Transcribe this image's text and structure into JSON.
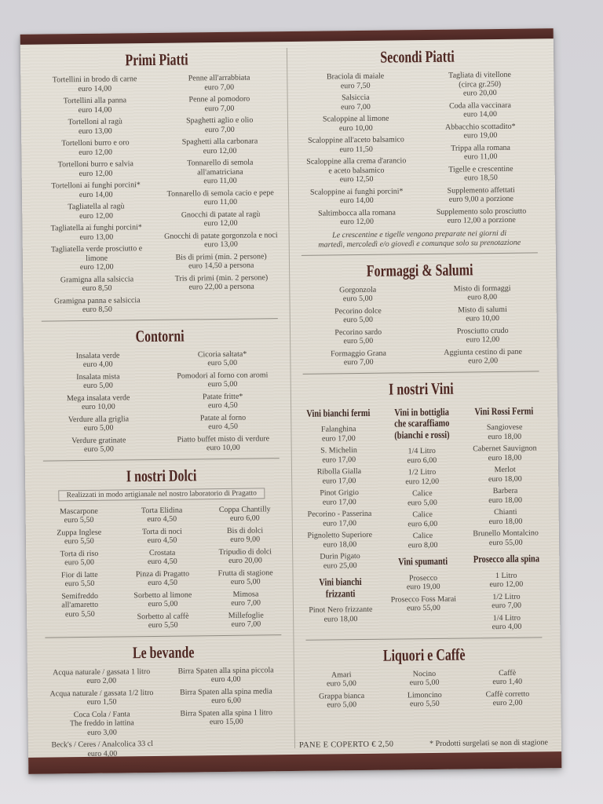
{
  "colors": {
    "bar_maroon": "#532b27",
    "title_maroon": "#4d2621",
    "paper_cream": "#ded9cf"
  },
  "footer": {
    "left": "PANE E COPERTO € 2,50",
    "right": "* Prodotti surgelati se non di stagione"
  },
  "board": {
    "halves": [
      {
        "name": "left",
        "sections": [
          {
            "id": "primi-piatti",
            "title": "Primi Piatti",
            "rule": true,
            "columns": [
              [
                {
                  "name": "Tortellini in brodo di carne",
                  "price": "euro 14,00"
                },
                {
                  "name": "Tortellini alla panna",
                  "price": "euro 14,00"
                },
                {
                  "name": "Tortelloni al ragù",
                  "price": "euro 13,00"
                },
                {
                  "name": "Tortelloni burro e oro",
                  "price": "euro 12,00"
                },
                {
                  "name": "Tortelloni burro e salvia",
                  "price": "euro 12,00"
                },
                {
                  "name": "Tortelloni ai funghi porcini*",
                  "price": "euro 14,00"
                },
                {
                  "name": "Tagliatella al ragù",
                  "price": "euro 12,00"
                },
                {
                  "name": "Tagliatella ai funghi porcini*",
                  "price": "euro 13,00"
                },
                {
                  "name": "Tagliatella verde prosciutto e\nlimone",
                  "price": "euro 12,00"
                },
                {
                  "name": "Gramigna alla salsiccia",
                  "price": "euro 8,50"
                },
                {
                  "name": "Gramigna panna e salsiccia",
                  "price": "euro 8,50"
                }
              ],
              [
                {
                  "name": "Penne all'arrabbiata",
                  "price": "euro 7,00"
                },
                {
                  "name": "Penne al pomodoro",
                  "price": "euro 7,00"
                },
                {
                  "name": "Spaghetti aglio e olio",
                  "price": "euro 7,00"
                },
                {
                  "name": "Spaghetti alla carbonara",
                  "price": "euro 12,00"
                },
                {
                  "name": "Tonnarello di semola\nall'amatriciana",
                  "price": "euro 11,00"
                },
                {
                  "name": "Tonnarello di semola cacio e pepe",
                  "price": "euro 11,00"
                },
                {
                  "name": "Gnocchi di patate al ragù",
                  "price": "euro 12,00"
                },
                {
                  "name": "Gnocchi di patate gorgonzola e noci",
                  "price": "euro 13,00"
                },
                {
                  "name": "Bis di primi (min. 2 persone)",
                  "price": "euro 14,50 a persona"
                },
                {
                  "name": "Tris di primi (min. 2 persone)",
                  "price": "euro 22,00 a persona"
                }
              ]
            ]
          },
          {
            "id": "contorni",
            "title": "Contorni",
            "rule": true,
            "columns": [
              [
                {
                  "name": "Insalata verde",
                  "price": "euro 4,00"
                },
                {
                  "name": "Insalata mista",
                  "price": "euro 5,00"
                },
                {
                  "name": "Mega insalata verde",
                  "price": "euro 10,00"
                },
                {
                  "name": "Verdure alla griglia",
                  "price": "euro 5,00"
                },
                {
                  "name": "Verdure gratinate",
                  "price": "euro 5,00"
                }
              ],
              [
                {
                  "name": "Cicoria saltata*",
                  "price": "euro 5,00"
                },
                {
                  "name": "Pomodori al forno con aromi",
                  "price": "euro 5,00"
                },
                {
                  "name": "Patate fritte*",
                  "price": "euro 4,50"
                },
                {
                  "name": "Patate al forno",
                  "price": "euro 4,50"
                },
                {
                  "name": "Piatto buffet misto di verdure",
                  "price": "euro 10,00"
                }
              ]
            ]
          },
          {
            "id": "dolci",
            "title": "I nostri Dolci",
            "boxed_note": "Realizzati in modo artigianale nel nostro laboratorio di Pragatto",
            "rule": true,
            "columns": [
              [
                {
                  "name": "Mascarpone",
                  "price": "euro 5,50"
                },
                {
                  "name": "Zuppa Inglese",
                  "price": "euro 5,50"
                },
                {
                  "name": "Torta di riso",
                  "price": "euro 5,00"
                },
                {
                  "name": "Fior di latte",
                  "price": "euro 5,50"
                },
                {
                  "name": "Semifreddo\nall'amaretto",
                  "price": "euro 5,50"
                }
              ],
              [
                {
                  "name": "Torta Elidina",
                  "price": "euro 4,50"
                },
                {
                  "name": "Torta di noci",
                  "price": "euro 4,50"
                },
                {
                  "name": "Crostata",
                  "price": "euro 4,50"
                },
                {
                  "name": "Pinza di Pragatto",
                  "price": "euro 4,50"
                },
                {
                  "name": "Sorbetto al limone",
                  "price": "euro 5,00"
                },
                {
                  "name": "Sorbetto al caffè",
                  "price": "euro 5,50"
                }
              ],
              [
                {
                  "name": "Coppa Chantilly",
                  "price": "euro 6,00"
                },
                {
                  "name": "Bis di dolci",
                  "price": "euro 9,00"
                },
                {
                  "name": "Tripudio di dolci",
                  "price": "euro 20,00"
                },
                {
                  "name": "Frutta di stagione",
                  "price": "euro 5,00"
                },
                {
                  "name": "Mimosa",
                  "price": "euro 7,00"
                },
                {
                  "name": "Millefoglie",
                  "price": "euro 7,00"
                }
              ]
            ]
          },
          {
            "id": "bevande",
            "title": "Le bevande",
            "rule": false,
            "columns": [
              [
                {
                  "name": "Acqua naturale / gassata 1 litro",
                  "price": "euro 2,00"
                },
                {
                  "name": "Acqua naturale / gassata 1/2 litro",
                  "price": "euro 1,50"
                },
                {
                  "name": "Coca Cola / Fanta\nThe freddo in lattina",
                  "price": "euro 3,00"
                },
                {
                  "name": "Beck's / Ceres / Analcolica 33 cl",
                  "price": "euro 4,00"
                }
              ],
              [
                {
                  "name": "Birra Spaten alla spina piccola",
                  "price": "euro 4,00"
                },
                {
                  "name": "Birra Spaten alla spina media",
                  "price": "euro 6,00"
                },
                {
                  "name": "Birra Spaten alla spina 1 litro",
                  "price": "euro 15,00"
                }
              ]
            ]
          }
        ]
      },
      {
        "name": "right",
        "sections": [
          {
            "id": "secondi-piatti",
            "title": "Secondi Piatti",
            "rule": true,
            "italic_note": "Le crescentine e tigelle vengono preparate nei giorni di\nmartedì, mercoledì e/o giovedì e comunque solo su prenotazione",
            "columns": [
              [
                {
                  "name": "Braciola di maiale",
                  "price": "euro 7,50"
                },
                {
                  "name": "Salsiccia",
                  "price": "euro 7,00"
                },
                {
                  "name": "Scaloppine al limone",
                  "price": "euro 10,00"
                },
                {
                  "name": "Scaloppine all'aceto balsamico",
                  "price": "euro 11,50"
                },
                {
                  "name": "Scaloppine alla crema d'arancio\ne aceto balsamico",
                  "price": "euro 12,50"
                },
                {
                  "name": "Scaloppine ai funghi porcini*",
                  "price": "euro 14,00"
                },
                {
                  "name": "Saltimbocca alla romana",
                  "price": "euro 12,00"
                }
              ],
              [
                {
                  "name": "Tagliata di vitellone\n(circa gr.250)",
                  "price": "euro 20,00"
                },
                {
                  "name": "Coda alla vaccinara",
                  "price": "euro 14,00"
                },
                {
                  "name": "Abbacchio scottadito*",
                  "price": "euro 19,00"
                },
                {
                  "name": "Trippa alla romana",
                  "price": "euro 11,00"
                },
                {
                  "name": "Tigelle e crescentine",
                  "price": "euro 18,50"
                },
                {
                  "name": "Supplemento affettati",
                  "price": "euro 9,00 a porzione"
                },
                {
                  "name": "Supplemento solo prosciutto",
                  "price": "euro 12,00 a porzione"
                }
              ]
            ]
          },
          {
            "id": "formaggi-salumi",
            "title": "Formaggi & Salumi",
            "rule": true,
            "columns": [
              [
                {
                  "name": "Gorgonzola",
                  "price": "euro 5,00"
                },
                {
                  "name": "Pecorino dolce",
                  "price": "euro 5,00"
                },
                {
                  "name": "Pecorino sardo",
                  "price": "euro 5,00"
                },
                {
                  "name": "Formaggio Grana",
                  "price": "euro 7,00"
                }
              ],
              [
                {
                  "name": "Misto di formaggi",
                  "price": "euro 8,00"
                },
                {
                  "name": "Misto di salumi",
                  "price": "euro 10,00"
                },
                {
                  "name": "Prosciutto crudo",
                  "price": "euro 12,00"
                },
                {
                  "name": "Aggiunta cestino di pane",
                  "price": "euro 2,00"
                }
              ]
            ]
          },
          {
            "id": "vini",
            "title": "I nostri Vini",
            "rule": true,
            "columns": [
              [
                {
                  "header": "Vini bianchi fermi"
                },
                {
                  "name": "Falanghina",
                  "price": "euro 17,00"
                },
                {
                  "name": "S. Michelin",
                  "price": "euro 17,00"
                },
                {
                  "name": "Ribolla Gialla",
                  "price": "euro 17,00"
                },
                {
                  "name": "Pinot Grigio",
                  "price": "euro 17,00"
                },
                {
                  "name": "Pecorino - Passerina",
                  "price": "euro 17,00"
                },
                {
                  "name": "Pignoletto Superiore",
                  "price": "euro 18,00"
                },
                {
                  "name": "Durin Pigato",
                  "price": "euro 25,00"
                },
                {
                  "header": "Vini bianchi frizzanti"
                },
                {
                  "name": "Pinot Nero frizzante",
                  "price": "euro 18,00"
                }
              ],
              [
                {
                  "header": "Vini in bottiglia\nche scaraffiamo\n(bianchi e rossi)"
                },
                {
                  "name": "1/4 Litro",
                  "price": "euro 6,00"
                },
                {
                  "name": "1/2 Litro",
                  "price": "euro 12,00"
                },
                {
                  "name": "Calice",
                  "price": "euro 5,00"
                },
                {
                  "name": "Calice",
                  "price": "euro 6,00"
                },
                {
                  "name": "Calice",
                  "price": "euro 8,00"
                },
                {
                  "header": "Vini spumanti"
                },
                {
                  "name": "Prosecco",
                  "price": "euro 19,00"
                },
                {
                  "name": "Prosecco Foss Marai",
                  "price": "euro 55,00"
                }
              ],
              [
                {
                  "header": "Vini Rossi Fermi"
                },
                {
                  "name": "Sangiovese",
                  "price": "euro 18,00"
                },
                {
                  "name": "Cabernet Sauvignon",
                  "price": "euro 18,00"
                },
                {
                  "name": "Merlot",
                  "price": "euro 18,00"
                },
                {
                  "name": "Barbera",
                  "price": "euro 18,00"
                },
                {
                  "name": "Chianti",
                  "price": "euro 18,00"
                },
                {
                  "name": "Brunello Montalcino",
                  "price": "euro 55,00"
                },
                {
                  "header": "Prosecco alla spina"
                },
                {
                  "name": "1 Litro",
                  "price": "euro 12,00"
                },
                {
                  "name": "1/2 Litro",
                  "price": "euro 7,00"
                },
                {
                  "name": "1/4 Litro",
                  "price": "euro 4,00"
                }
              ]
            ]
          },
          {
            "id": "liquori-caffe",
            "title": "Liquori e Caffè",
            "rule": false,
            "columns": [
              [
                {
                  "name": "Amari",
                  "price": "euro 5,00"
                },
                {
                  "name": "Grappa bianca",
                  "price": "euro 5,00"
                }
              ],
              [
                {
                  "name": "Nocino",
                  "price": "euro 5,00"
                },
                {
                  "name": "Limoncino",
                  "price": "euro 5,50"
                }
              ],
              [
                {
                  "name": "Caffè",
                  "price": "euro 1,40"
                },
                {
                  "name": "Caffè corretto",
                  "price": "euro 2,00"
                }
              ]
            ]
          }
        ]
      }
    ]
  }
}
